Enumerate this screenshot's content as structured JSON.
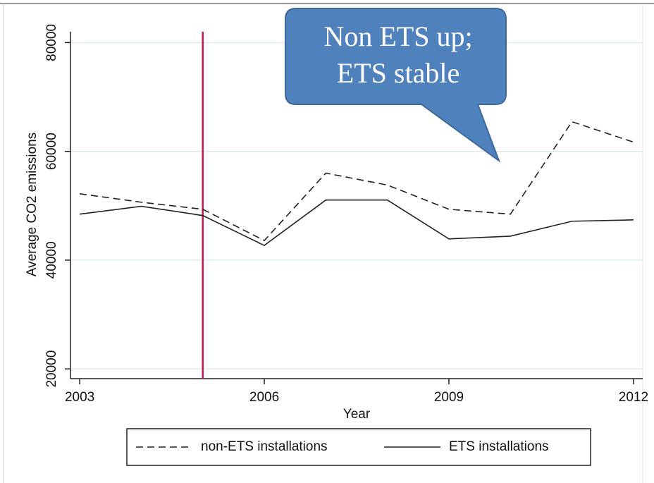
{
  "chart_data": {
    "type": "line",
    "x": [
      2003,
      2004,
      2005,
      2006,
      2007,
      2008,
      2009,
      2010,
      2011,
      2012
    ],
    "series": [
      {
        "name": "non-ETS installations",
        "color": "#222222",
        "dash": "dashed",
        "values": [
          52200,
          50650,
          49350,
          43600,
          56000,
          53800,
          49350,
          48450,
          65450,
          61700
        ]
      },
      {
        "name": "ETS installations",
        "color": "#222222",
        "dash": "solid",
        "values": [
          48450,
          49900,
          48200,
          42700,
          51050,
          51050,
          43900,
          44400,
          47150,
          47400
        ]
      }
    ],
    "xlabel": "Year",
    "ylabel": "Average CO2 emissions",
    "xlim": [
      2002.85,
      2012.15
    ],
    "xticks": [
      2003,
      2006,
      2009,
      2012
    ],
    "ylim": [
      18200,
      82000
    ],
    "yticks": [
      20000,
      40000,
      60000,
      80000
    ],
    "grid": true,
    "vline": {
      "x": 2005,
      "color": "#c8184a"
    },
    "annotation": [
      "Non ETS up;",
      "ETS stable"
    ],
    "legend": "bottom"
  }
}
